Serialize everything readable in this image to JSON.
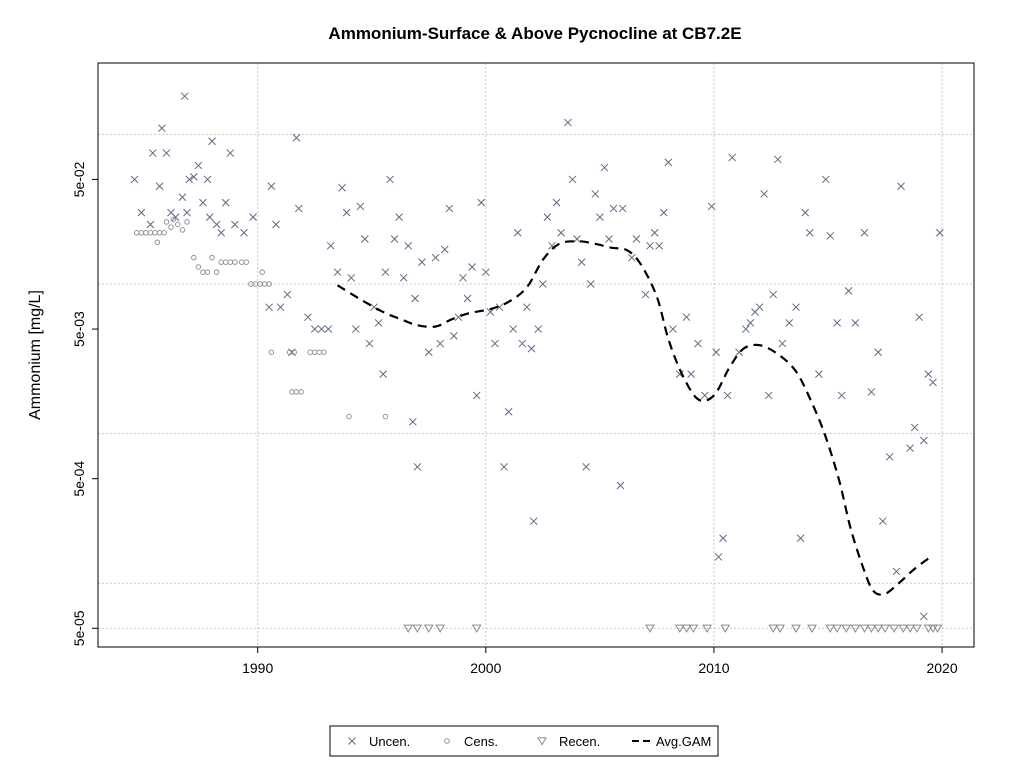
{
  "chart_data": {
    "type": "scatter",
    "title": "Ammonium-Surface & Above Pycnocline at CB7.2E",
    "xlabel": "",
    "ylabel": "Ammonium [mg/L]",
    "y_scale": "log",
    "xlim": [
      1983.0,
      2021.4
    ],
    "ylim": [
      3.75e-05,
      0.3
    ],
    "x_ticks": [
      1990,
      2000,
      2010,
      2020
    ],
    "x_tick_labels": [
      "1990",
      "2000",
      "2010",
      "2020"
    ],
    "y_ticks": [
      5e-05,
      0.0005,
      0.005,
      0.05
    ],
    "y_tick_labels": [
      "5e-05",
      "5e-04",
      "5e-03",
      "5e-02"
    ],
    "grid_x": [
      1990,
      2000,
      2010,
      2020
    ],
    "grid_y": [
      0.1,
      0.01,
      0.001,
      0.0001,
      5e-05
    ],
    "grid": true,
    "legend_position": "bottom-center",
    "colors": {
      "uncensored": "#5b6b86",
      "censored": "#8a8a8a",
      "recensored": "#8a8a8a",
      "gam": "#000000",
      "grid": "#c8c8c8"
    },
    "series": [
      {
        "name": "Uncen.",
        "marker": "x",
        "points": [
          [
            1984.6,
            0.05
          ],
          [
            1984.9,
            0.03
          ],
          [
            1985.3,
            0.025
          ],
          [
            1985.4,
            0.075
          ],
          [
            1985.7,
            0.045
          ],
          [
            1985.8,
            0.11
          ],
          [
            1986.0,
            0.075
          ],
          [
            1986.2,
            0.03
          ],
          [
            1986.4,
            0.028
          ],
          [
            1986.7,
            0.038
          ],
          [
            1986.8,
            0.18
          ],
          [
            1986.9,
            0.03
          ],
          [
            1987.0,
            0.05
          ],
          [
            1987.2,
            0.052
          ],
          [
            1987.4,
            0.062
          ],
          [
            1987.6,
            0.035
          ],
          [
            1987.8,
            0.05
          ],
          [
            1987.9,
            0.028
          ],
          [
            1988.0,
            0.09
          ],
          [
            1988.2,
            0.025
          ],
          [
            1988.4,
            0.022
          ],
          [
            1988.6,
            0.035
          ],
          [
            1988.8,
            0.075
          ],
          [
            1989.0,
            0.025
          ],
          [
            1989.4,
            0.022
          ],
          [
            1989.8,
            0.028
          ],
          [
            1990.5,
            0.007
          ],
          [
            1990.6,
            0.045
          ],
          [
            1990.8,
            0.025
          ],
          [
            1991.0,
            0.007
          ],
          [
            1991.3,
            0.0085
          ],
          [
            1991.5,
            0.0035
          ],
          [
            1991.7,
            0.095
          ],
          [
            1991.8,
            0.032
          ],
          [
            1992.2,
            0.006
          ],
          [
            1992.5,
            0.005
          ],
          [
            1992.8,
            0.005
          ],
          [
            1993.1,
            0.005
          ],
          [
            1993.2,
            0.018
          ],
          [
            1993.5,
            0.012
          ],
          [
            1993.7,
            0.044
          ],
          [
            1993.9,
            0.03
          ],
          [
            1994.1,
            0.011
          ],
          [
            1994.3,
            0.005
          ],
          [
            1994.5,
            0.033
          ],
          [
            1994.7,
            0.02
          ],
          [
            1994.9,
            0.004
          ],
          [
            1995.1,
            0.007
          ],
          [
            1995.3,
            0.0055
          ],
          [
            1995.5,
            0.0025
          ],
          [
            1995.6,
            0.012
          ],
          [
            1995.8,
            0.05
          ],
          [
            1996.0,
            0.02
          ],
          [
            1996.2,
            0.028
          ],
          [
            1996.4,
            0.011
          ],
          [
            1996.6,
            0.018
          ],
          [
            1996.8,
            0.0012
          ],
          [
            1996.9,
            0.008
          ],
          [
            1997.0,
            0.0006
          ],
          [
            1997.2,
            0.014
          ],
          [
            1997.5,
            0.0035
          ],
          [
            1997.8,
            0.015
          ],
          [
            1998.0,
            0.004
          ],
          [
            1998.2,
            0.017
          ],
          [
            1998.4,
            0.032
          ],
          [
            1998.6,
            0.0045
          ],
          [
            1998.8,
            0.006
          ],
          [
            1999.0,
            0.011
          ],
          [
            1999.2,
            0.008
          ],
          [
            1999.4,
            0.013
          ],
          [
            1999.6,
            0.0018
          ],
          [
            1999.8,
            0.035
          ],
          [
            2000.0,
            0.012
          ],
          [
            2000.2,
            0.0065
          ],
          [
            2000.4,
            0.004
          ],
          [
            2000.6,
            0.007
          ],
          [
            2000.8,
            0.0006
          ],
          [
            2001.0,
            0.0014
          ],
          [
            2001.2,
            0.005
          ],
          [
            2001.4,
            0.022
          ],
          [
            2001.6,
            0.004
          ],
          [
            2001.8,
            0.007
          ],
          [
            2002.0,
            0.0037
          ],
          [
            2002.1,
            0.00026
          ],
          [
            2002.3,
            0.005
          ],
          [
            2002.5,
            0.01
          ],
          [
            2002.7,
            0.028
          ],
          [
            2002.9,
            0.018
          ],
          [
            2003.1,
            0.035
          ],
          [
            2003.3,
            0.022
          ],
          [
            2003.6,
            0.12
          ],
          [
            2003.8,
            0.05
          ],
          [
            2004.0,
            0.02
          ],
          [
            2004.2,
            0.014
          ],
          [
            2004.4,
            0.0006
          ],
          [
            2004.6,
            0.01
          ],
          [
            2004.8,
            0.04
          ],
          [
            2005.0,
            0.028
          ],
          [
            2005.2,
            0.06
          ],
          [
            2005.4,
            0.02
          ],
          [
            2005.6,
            0.032
          ],
          [
            2005.9,
            0.00045
          ],
          [
            2006.0,
            0.032
          ],
          [
            2006.4,
            0.015
          ],
          [
            2006.6,
            0.02
          ],
          [
            2007.0,
            0.0085
          ],
          [
            2007.2,
            0.018
          ],
          [
            2007.4,
            0.022
          ],
          [
            2007.6,
            0.018
          ],
          [
            2007.8,
            0.03
          ],
          [
            2008.0,
            0.065
          ],
          [
            2008.2,
            0.005
          ],
          [
            2008.5,
            0.0025
          ],
          [
            2008.8,
            0.006
          ],
          [
            2009.0,
            0.0025
          ],
          [
            2009.3,
            0.004
          ],
          [
            2009.6,
            0.0018
          ],
          [
            2009.9,
            0.033
          ],
          [
            2010.1,
            0.0035
          ],
          [
            2010.2,
            0.00015
          ],
          [
            2010.4,
            0.0002
          ],
          [
            2010.6,
            0.0018
          ],
          [
            2010.8,
            0.07
          ],
          [
            2011.1,
            0.0035
          ],
          [
            2011.4,
            0.005
          ],
          [
            2011.6,
            0.0055
          ],
          [
            2011.8,
            0.0065
          ],
          [
            2012.0,
            0.007
          ],
          [
            2012.2,
            0.04
          ],
          [
            2012.4,
            0.0018
          ],
          [
            2012.6,
            0.0085
          ],
          [
            2012.8,
            0.068
          ],
          [
            2013.0,
            0.004
          ],
          [
            2013.3,
            0.0055
          ],
          [
            2013.6,
            0.007
          ],
          [
            2013.8,
            0.0002
          ],
          [
            2014.0,
            0.03
          ],
          [
            2014.2,
            0.022
          ],
          [
            2014.6,
            0.0025
          ],
          [
            2014.9,
            0.05
          ],
          [
            2015.1,
            0.021
          ],
          [
            2015.4,
            0.0055
          ],
          [
            2015.6,
            0.0018
          ],
          [
            2015.9,
            0.009
          ],
          [
            2016.2,
            0.0055
          ],
          [
            2016.6,
            0.022
          ],
          [
            2016.9,
            0.0019
          ],
          [
            2017.2,
            0.0035
          ],
          [
            2017.4,
            0.00026
          ],
          [
            2017.7,
            0.0007
          ],
          [
            2018.0,
            0.00012
          ],
          [
            2018.2,
            0.045
          ],
          [
            2018.6,
            0.0008
          ],
          [
            2018.8,
            0.0011
          ],
          [
            2019.0,
            0.006
          ],
          [
            2019.2,
            0.0009
          ],
          [
            2019.4,
            0.0025
          ],
          [
            2019.6,
            0.0022
          ],
          [
            2019.9,
            0.022
          ],
          [
            2019.2,
            6e-05
          ]
        ]
      },
      {
        "name": "Cens.",
        "marker": "o",
        "points": [
          [
            1984.7,
            0.022
          ],
          [
            1984.9,
            0.022
          ],
          [
            1985.1,
            0.022
          ],
          [
            1985.3,
            0.022
          ],
          [
            1985.5,
            0.022
          ],
          [
            1985.7,
            0.022
          ],
          [
            1985.9,
            0.022
          ],
          [
            1985.6,
            0.019
          ],
          [
            1986.0,
            0.026
          ],
          [
            1986.2,
            0.024
          ],
          [
            1986.3,
            0.027
          ],
          [
            1986.5,
            0.025
          ],
          [
            1986.7,
            0.023
          ],
          [
            1986.9,
            0.026
          ],
          [
            1987.2,
            0.015
          ],
          [
            1987.4,
            0.013
          ],
          [
            1987.6,
            0.012
          ],
          [
            1987.8,
            0.012
          ],
          [
            1988.0,
            0.015
          ],
          [
            1988.2,
            0.012
          ],
          [
            1988.4,
            0.014
          ],
          [
            1988.6,
            0.014
          ],
          [
            1988.8,
            0.014
          ],
          [
            1989.0,
            0.014
          ],
          [
            1989.3,
            0.014
          ],
          [
            1989.5,
            0.014
          ],
          [
            1989.7,
            0.01
          ],
          [
            1989.9,
            0.01
          ],
          [
            1990.1,
            0.01
          ],
          [
            1990.3,
            0.01
          ],
          [
            1990.5,
            0.01
          ],
          [
            1990.2,
            0.012
          ],
          [
            1990.6,
            0.0035
          ],
          [
            1991.4,
            0.0035
          ],
          [
            1991.6,
            0.0035
          ],
          [
            1992.3,
            0.0035
          ],
          [
            1992.5,
            0.0035
          ],
          [
            1992.7,
            0.0035
          ],
          [
            1992.9,
            0.0035
          ],
          [
            1991.5,
            0.0019
          ],
          [
            1991.7,
            0.0019
          ],
          [
            1991.9,
            0.0019
          ],
          [
            1994.0,
            0.0013
          ],
          [
            1995.6,
            0.0013
          ]
        ]
      },
      {
        "name": "Recen.",
        "marker": "triangle-down",
        "points": [
          [
            1996.6,
            5e-05
          ],
          [
            1997.0,
            5e-05
          ],
          [
            1997.5,
            5e-05
          ],
          [
            1998.0,
            5e-05
          ],
          [
            1999.6,
            5e-05
          ],
          [
            2007.2,
            5e-05
          ],
          [
            2008.5,
            5e-05
          ],
          [
            2008.8,
            5e-05
          ],
          [
            2009.1,
            5e-05
          ],
          [
            2009.7,
            5e-05
          ],
          [
            2010.5,
            5e-05
          ],
          [
            2012.6,
            5e-05
          ],
          [
            2012.9,
            5e-05
          ],
          [
            2013.6,
            5e-05
          ],
          [
            2014.3,
            5e-05
          ],
          [
            2015.1,
            5e-05
          ],
          [
            2015.4,
            5e-05
          ],
          [
            2015.8,
            5e-05
          ],
          [
            2016.2,
            5e-05
          ],
          [
            2016.6,
            5e-05
          ],
          [
            2016.9,
            5e-05
          ],
          [
            2017.2,
            5e-05
          ],
          [
            2017.5,
            5e-05
          ],
          [
            2017.9,
            5e-05
          ],
          [
            2018.3,
            5e-05
          ],
          [
            2018.6,
            5e-05
          ],
          [
            2018.9,
            5e-05
          ],
          [
            2019.4,
            5e-05
          ],
          [
            2019.6,
            5e-05
          ],
          [
            2019.8,
            5e-05
          ]
        ]
      },
      {
        "name": "Avg.GAM",
        "marker": "dashed-line",
        "points": [
          [
            1993.5,
            0.0098
          ],
          [
            1994.5,
            0.0079
          ],
          [
            1995.5,
            0.0065
          ],
          [
            1996.3,
            0.0058
          ],
          [
            1997.0,
            0.0053
          ],
          [
            1997.8,
            0.0052
          ],
          [
            1998.5,
            0.0058
          ],
          [
            1999.3,
            0.0064
          ],
          [
            2000.2,
            0.0068
          ],
          [
            2001.0,
            0.0076
          ],
          [
            2001.8,
            0.0095
          ],
          [
            2002.5,
            0.0145
          ],
          [
            2003.2,
            0.0185
          ],
          [
            2004.0,
            0.0193
          ],
          [
            2004.7,
            0.0187
          ],
          [
            2005.5,
            0.0175
          ],
          [
            2006.2,
            0.0168
          ],
          [
            2006.8,
            0.0135
          ],
          [
            2007.5,
            0.0082
          ],
          [
            2008.0,
            0.0043
          ],
          [
            2008.6,
            0.0025
          ],
          [
            2009.3,
            0.0017
          ],
          [
            2010.0,
            0.0018
          ],
          [
            2010.7,
            0.0028
          ],
          [
            2011.3,
            0.0037
          ],
          [
            2012.0,
            0.0039
          ],
          [
            2012.8,
            0.0034
          ],
          [
            2013.6,
            0.0026
          ],
          [
            2014.3,
            0.0016
          ],
          [
            2014.9,
            0.00095
          ],
          [
            2015.5,
            0.00048
          ],
          [
            2016.0,
            0.00023
          ],
          [
            2016.6,
            0.00012
          ],
          [
            2017.0,
            8.85e-05
          ],
          [
            2017.5,
            8.5e-05
          ],
          [
            2018.1,
            0.0001
          ],
          [
            2018.8,
            0.000125
          ],
          [
            2019.5,
            0.00015
          ]
        ]
      }
    ]
  }
}
